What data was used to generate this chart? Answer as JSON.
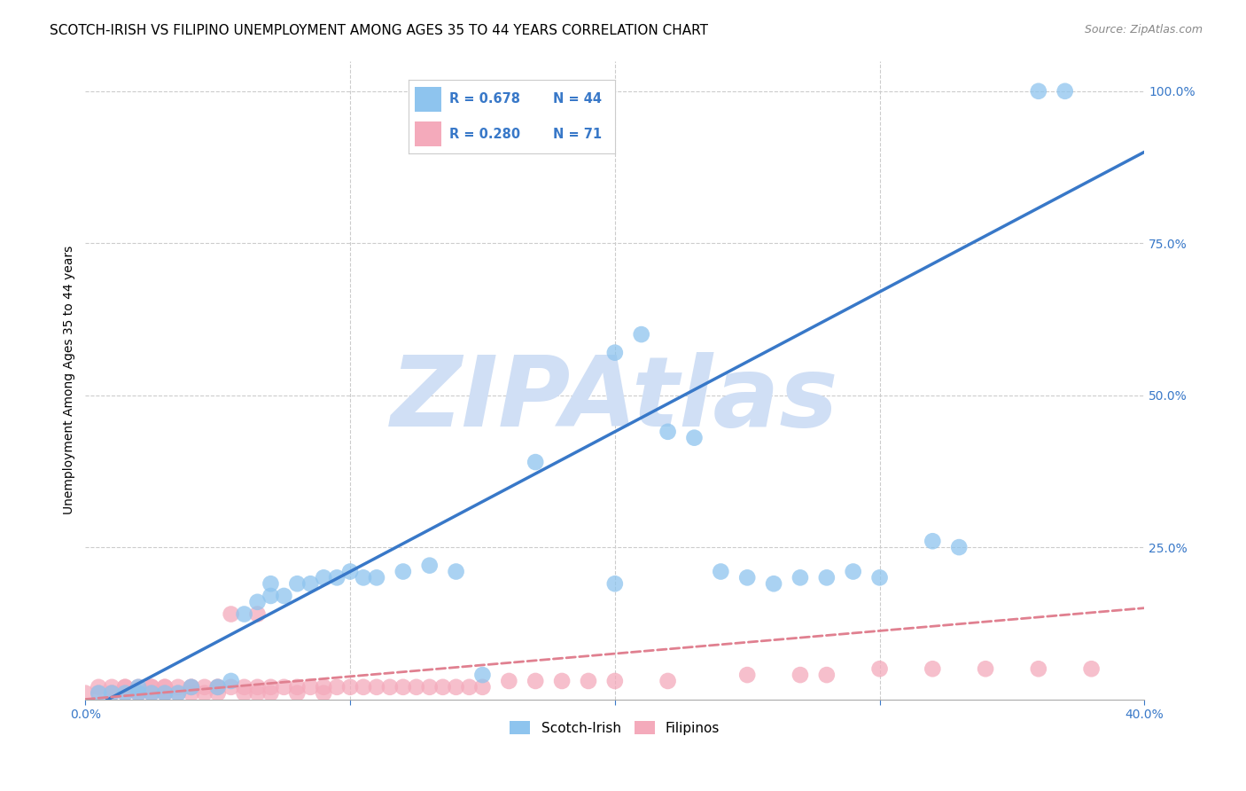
{
  "title": "SCOTCH-IRISH VS FILIPINO UNEMPLOYMENT AMONG AGES 35 TO 44 YEARS CORRELATION CHART",
  "source": "Source: ZipAtlas.com",
  "ylabel": "Unemployment Among Ages 35 to 44 years",
  "xlim": [
    0.0,
    0.4
  ],
  "ylim": [
    0.0,
    1.05
  ],
  "xticks": [
    0.0,
    0.1,
    0.2,
    0.3,
    0.4
  ],
  "xticklabels": [
    "0.0%",
    "",
    "",
    "",
    "40.0%"
  ],
  "yticks_right": [
    0.0,
    0.25,
    0.5,
    0.75,
    1.0
  ],
  "yticklabels_right": [
    "",
    "25.0%",
    "50.0%",
    "75.0%",
    "100.0%"
  ],
  "scotch_irish_color": "#8EC4EE",
  "filipino_color": "#F4AABB",
  "scotch_irish_line_color": "#3878C8",
  "filipino_line_color": "#E08090",
  "background_color": "#FFFFFF",
  "grid_color": "#CCCCCC",
  "watermark_text": "ZIPAtlas",
  "watermark_color": "#D0DFF5",
  "scotch_irish_points": [
    [
      0.005,
      0.01
    ],
    [
      0.01,
      0.01
    ],
    [
      0.015,
      0.01
    ],
    [
      0.02,
      0.01
    ],
    [
      0.02,
      0.02
    ],
    [
      0.025,
      0.01
    ],
    [
      0.03,
      0.01
    ],
    [
      0.035,
      0.01
    ],
    [
      0.04,
      0.02
    ],
    [
      0.05,
      0.02
    ],
    [
      0.055,
      0.03
    ],
    [
      0.06,
      0.14
    ],
    [
      0.065,
      0.16
    ],
    [
      0.07,
      0.17
    ],
    [
      0.07,
      0.19
    ],
    [
      0.075,
      0.17
    ],
    [
      0.08,
      0.19
    ],
    [
      0.085,
      0.19
    ],
    [
      0.09,
      0.2
    ],
    [
      0.095,
      0.2
    ],
    [
      0.1,
      0.21
    ],
    [
      0.105,
      0.2
    ],
    [
      0.11,
      0.2
    ],
    [
      0.12,
      0.21
    ],
    [
      0.13,
      0.22
    ],
    [
      0.14,
      0.21
    ],
    [
      0.15,
      0.04
    ],
    [
      0.17,
      0.39
    ],
    [
      0.2,
      0.57
    ],
    [
      0.21,
      0.6
    ],
    [
      0.22,
      0.44
    ],
    [
      0.23,
      0.43
    ],
    [
      0.24,
      0.21
    ],
    [
      0.25,
      0.2
    ],
    [
      0.26,
      0.19
    ],
    [
      0.27,
      0.2
    ],
    [
      0.28,
      0.2
    ],
    [
      0.29,
      0.21
    ],
    [
      0.3,
      0.2
    ],
    [
      0.32,
      0.26
    ],
    [
      0.33,
      0.25
    ],
    [
      0.36,
      1.0
    ],
    [
      0.37,
      1.0
    ],
    [
      0.2,
      0.19
    ]
  ],
  "filipino_points": [
    [
      0.0,
      0.01
    ],
    [
      0.005,
      0.01
    ],
    [
      0.005,
      0.02
    ],
    [
      0.01,
      0.01
    ],
    [
      0.01,
      0.02
    ],
    [
      0.01,
      0.01
    ],
    [
      0.015,
      0.02
    ],
    [
      0.015,
      0.01
    ],
    [
      0.015,
      0.02
    ],
    [
      0.02,
      0.01
    ],
    [
      0.02,
      0.02
    ],
    [
      0.02,
      0.01
    ],
    [
      0.025,
      0.02
    ],
    [
      0.025,
      0.01
    ],
    [
      0.025,
      0.02
    ],
    [
      0.025,
      0.01
    ],
    [
      0.03,
      0.02
    ],
    [
      0.03,
      0.01
    ],
    [
      0.03,
      0.02
    ],
    [
      0.03,
      0.01
    ],
    [
      0.035,
      0.02
    ],
    [
      0.035,
      0.01
    ],
    [
      0.04,
      0.02
    ],
    [
      0.04,
      0.01
    ],
    [
      0.04,
      0.02
    ],
    [
      0.045,
      0.02
    ],
    [
      0.045,
      0.01
    ],
    [
      0.05,
      0.02
    ],
    [
      0.05,
      0.01
    ],
    [
      0.05,
      0.02
    ],
    [
      0.055,
      0.02
    ],
    [
      0.055,
      0.14
    ],
    [
      0.06,
      0.02
    ],
    [
      0.06,
      0.01
    ],
    [
      0.065,
      0.02
    ],
    [
      0.065,
      0.01
    ],
    [
      0.07,
      0.02
    ],
    [
      0.07,
      0.01
    ],
    [
      0.075,
      0.02
    ],
    [
      0.08,
      0.02
    ],
    [
      0.08,
      0.01
    ],
    [
      0.085,
      0.02
    ],
    [
      0.09,
      0.02
    ],
    [
      0.09,
      0.01
    ],
    [
      0.095,
      0.02
    ],
    [
      0.1,
      0.02
    ],
    [
      0.105,
      0.02
    ],
    [
      0.11,
      0.02
    ],
    [
      0.115,
      0.02
    ],
    [
      0.12,
      0.02
    ],
    [
      0.125,
      0.02
    ],
    [
      0.13,
      0.02
    ],
    [
      0.135,
      0.02
    ],
    [
      0.14,
      0.02
    ],
    [
      0.145,
      0.02
    ],
    [
      0.15,
      0.02
    ],
    [
      0.16,
      0.03
    ],
    [
      0.17,
      0.03
    ],
    [
      0.18,
      0.03
    ],
    [
      0.19,
      0.03
    ],
    [
      0.2,
      0.03
    ],
    [
      0.22,
      0.03
    ],
    [
      0.25,
      0.04
    ],
    [
      0.27,
      0.04
    ],
    [
      0.28,
      0.04
    ],
    [
      0.3,
      0.05
    ],
    [
      0.32,
      0.05
    ],
    [
      0.34,
      0.05
    ],
    [
      0.36,
      0.05
    ],
    [
      0.38,
      0.05
    ],
    [
      0.065,
      0.14
    ]
  ],
  "title_fontsize": 11,
  "label_fontsize": 10,
  "tick_fontsize": 10,
  "legend_text_color": "#3878C8"
}
